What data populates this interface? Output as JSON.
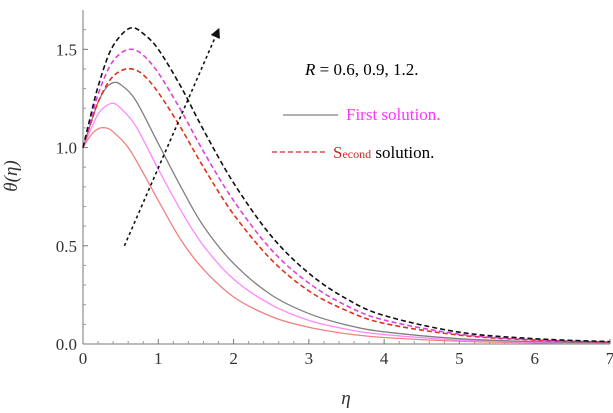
{
  "chart_data": {
    "type": "line",
    "xlabel": "η",
    "ylabel": "θ(η)",
    "xlim": [
      0,
      7
    ],
    "ylim": [
      0,
      1.7
    ],
    "x_ticks": [
      "0",
      "1",
      "2",
      "3",
      "4",
      "5",
      "6",
      "7"
    ],
    "y_ticks": [
      "0.0",
      "0.5",
      "1.0",
      "1.5"
    ],
    "x_tick_values": [
      0,
      1,
      2,
      3,
      4,
      5,
      6,
      7
    ],
    "y_tick_values": [
      0,
      0.5,
      1.0,
      1.5
    ],
    "grid": false,
    "annotation": {
      "R_prefix": "R",
      "R_values": " = 0.6, 0.9, 1.2.",
      "first_legend": "First solution.",
      "second_legend_S": "S",
      "second_legend_small": "econd",
      "second_legend_rest": " solution."
    },
    "colors": {
      "first_solution_legend": "#ff33ff",
      "second_solution_legend": "#d62728",
      "series_R06": "#f08080",
      "series_R09": "#ff88ff",
      "series_R12": "#808080",
      "series_R06_second": "#e0301e",
      "series_R09_second": "#e040e0",
      "series_R12_second": "#111111",
      "arrow": "#111111"
    },
    "series": [
      {
        "solution": "first",
        "R": 0.6,
        "dash": "solid",
        "color": "#f08080",
        "points": [
          [
            0,
            1.0
          ],
          [
            0.1,
            1.06
          ],
          [
            0.2,
            1.095
          ],
          [
            0.3,
            1.1
          ],
          [
            0.4,
            1.08
          ],
          [
            0.6,
            1.0
          ],
          [
            0.8,
            0.87
          ],
          [
            1.0,
            0.73
          ],
          [
            1.3,
            0.53
          ],
          [
            1.6,
            0.38
          ],
          [
            2.0,
            0.24
          ],
          [
            2.5,
            0.14
          ],
          [
            3.0,
            0.085
          ],
          [
            3.5,
            0.052
          ],
          [
            4.0,
            0.033
          ],
          [
            5.0,
            0.014
          ],
          [
            6.0,
            0.006
          ],
          [
            7.0,
            0.003
          ]
        ]
      },
      {
        "solution": "first",
        "R": 0.9,
        "dash": "solid",
        "color": "#ff88ff",
        "points": [
          [
            0,
            1.0
          ],
          [
            0.1,
            1.09
          ],
          [
            0.2,
            1.17
          ],
          [
            0.3,
            1.21
          ],
          [
            0.4,
            1.225
          ],
          [
            0.5,
            1.2
          ],
          [
            0.7,
            1.11
          ],
          [
            1.0,
            0.89
          ],
          [
            1.3,
            0.68
          ],
          [
            1.6,
            0.5
          ],
          [
            2.0,
            0.33
          ],
          [
            2.5,
            0.2
          ],
          [
            3.0,
            0.12
          ],
          [
            3.5,
            0.075
          ],
          [
            4.0,
            0.048
          ],
          [
            5.0,
            0.02
          ],
          [
            6.0,
            0.009
          ],
          [
            7.0,
            0.004
          ]
        ]
      },
      {
        "solution": "first",
        "R": 1.2,
        "dash": "solid",
        "color": "#808080",
        "points": [
          [
            0,
            1.0
          ],
          [
            0.1,
            1.12
          ],
          [
            0.2,
            1.23
          ],
          [
            0.3,
            1.3
          ],
          [
            0.4,
            1.33
          ],
          [
            0.5,
            1.32
          ],
          [
            0.7,
            1.24
          ],
          [
            1.0,
            1.02
          ],
          [
            1.3,
            0.8
          ],
          [
            1.6,
            0.6
          ],
          [
            2.0,
            0.41
          ],
          [
            2.5,
            0.25
          ],
          [
            3.0,
            0.155
          ],
          [
            3.5,
            0.097
          ],
          [
            4.0,
            0.062
          ],
          [
            5.0,
            0.027
          ],
          [
            6.0,
            0.012
          ],
          [
            7.0,
            0.005
          ]
        ]
      },
      {
        "solution": "second",
        "R": 0.6,
        "dash": "dashed",
        "color": "#e0301e",
        "points": [
          [
            0,
            1.0
          ],
          [
            0.1,
            1.12
          ],
          [
            0.2,
            1.23
          ],
          [
            0.35,
            1.34
          ],
          [
            0.5,
            1.39
          ],
          [
            0.65,
            1.4
          ],
          [
            0.8,
            1.37
          ],
          [
            1.0,
            1.28
          ],
          [
            1.3,
            1.1
          ],
          [
            1.6,
            0.9
          ],
          [
            2.0,
            0.66
          ],
          [
            2.5,
            0.43
          ],
          [
            3.0,
            0.27
          ],
          [
            3.5,
            0.17
          ],
          [
            4.0,
            0.105
          ],
          [
            5.0,
            0.045
          ],
          [
            6.0,
            0.02
          ],
          [
            7.0,
            0.009
          ]
        ]
      },
      {
        "solution": "second",
        "R": 0.9,
        "dash": "dashed",
        "color": "#e040e0",
        "points": [
          [
            0,
            1.0
          ],
          [
            0.1,
            1.14
          ],
          [
            0.2,
            1.27
          ],
          [
            0.35,
            1.41
          ],
          [
            0.5,
            1.48
          ],
          [
            0.65,
            1.5
          ],
          [
            0.8,
            1.47
          ],
          [
            1.0,
            1.38
          ],
          [
            1.3,
            1.19
          ],
          [
            1.6,
            0.98
          ],
          [
            2.0,
            0.73
          ],
          [
            2.5,
            0.48
          ],
          [
            3.0,
            0.31
          ],
          [
            3.5,
            0.195
          ],
          [
            4.0,
            0.122
          ],
          [
            5.0,
            0.05
          ],
          [
            6.0,
            0.022
          ],
          [
            7.0,
            0.01
          ]
        ]
      },
      {
        "solution": "second",
        "R": 1.2,
        "dash": "dashed",
        "color": "#111111",
        "points": [
          [
            0,
            1.0
          ],
          [
            0.1,
            1.16
          ],
          [
            0.2,
            1.31
          ],
          [
            0.35,
            1.48
          ],
          [
            0.5,
            1.57
          ],
          [
            0.65,
            1.61
          ],
          [
            0.8,
            1.58
          ],
          [
            1.0,
            1.5
          ],
          [
            1.3,
            1.31
          ],
          [
            1.6,
            1.09
          ],
          [
            2.0,
            0.82
          ],
          [
            2.5,
            0.55
          ],
          [
            3.0,
            0.36
          ],
          [
            3.5,
            0.23
          ],
          [
            4.0,
            0.145
          ],
          [
            5.0,
            0.06
          ],
          [
            6.0,
            0.027
          ],
          [
            7.0,
            0.012
          ]
        ]
      }
    ],
    "arrow_data": {
      "from": [
        0.55,
        0.5
      ],
      "to": [
        1.8,
        1.6
      ]
    }
  }
}
